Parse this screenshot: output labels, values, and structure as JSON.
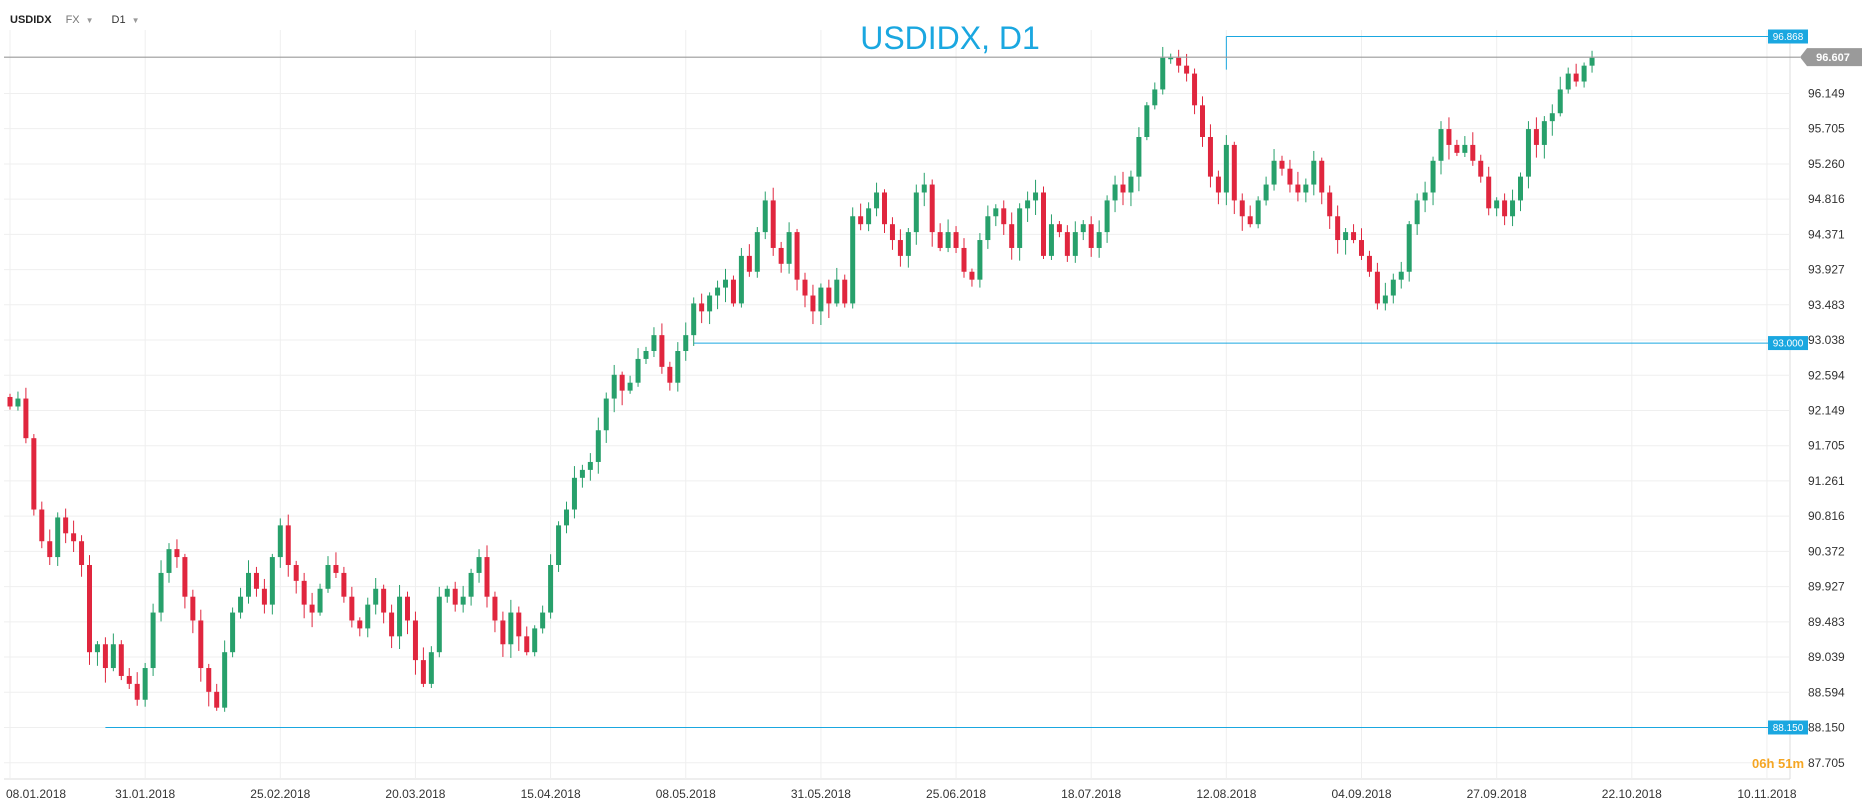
{
  "toolbar": {
    "symbol": "USDIDX",
    "market": "FX",
    "timeframe": "D1"
  },
  "timer": {
    "hours": "06",
    "h_unit": "h",
    "minutes": "51",
    "m_unit": "m"
  },
  "colors": {
    "up": "#27a06b",
    "down": "#e0263e",
    "level": "#1aa7e0",
    "current": "#9a9a9a",
    "grid": "#efefef",
    "title": "#1aa7e0",
    "timer": "#f5a623"
  },
  "chart_data": {
    "type": "candlestick",
    "title": "USDIDX, D1",
    "ylim": [
      87.5,
      96.95
    ],
    "yticks": [
      "96.149",
      "95.705",
      "95.260",
      "94.816",
      "94.371",
      "93.927",
      "93.483",
      "93.038",
      "92.594",
      "92.149",
      "91.705",
      "91.261",
      "90.816",
      "90.372",
      "89.927",
      "89.483",
      "89.039",
      "88.594",
      "88.150",
      "87.705"
    ],
    "xticks": [
      {
        "label": "08.01.2018",
        "index": 0
      },
      {
        "label": "31.01.2018",
        "index": 17
      },
      {
        "label": "25.02.2018",
        "index": 34
      },
      {
        "label": "20.03.2018",
        "index": 51
      },
      {
        "label": "15.04.2018",
        "index": 68
      },
      {
        "label": "08.05.2018",
        "index": 85
      },
      {
        "label": "31.05.2018",
        "index": 102
      },
      {
        "label": "25.06.2018",
        "index": 119
      },
      {
        "label": "18.07.2018",
        "index": 136
      },
      {
        "label": "12.08.2018",
        "index": 153
      },
      {
        "label": "04.09.2018",
        "index": 170
      },
      {
        "label": "27.09.2018",
        "index": 187
      },
      {
        "label": "22.10.2018",
        "index": 204
      },
      {
        "label": "10.11.2018",
        "index": 221
      }
    ],
    "levels": [
      {
        "label": "96.868",
        "value": 96.868,
        "from_index": 153
      },
      {
        "label": "93.000",
        "value": 93.0,
        "from_index": 86
      },
      {
        "label": "88.150",
        "value": 88.15,
        "from_index": 12
      }
    ],
    "current_price": {
      "label": "96.607",
      "value": 96.607
    },
    "closes": [
      92.2,
      92.3,
      91.8,
      90.9,
      90.5,
      90.3,
      90.8,
      90.6,
      90.5,
      90.2,
      89.1,
      89.2,
      88.9,
      89.2,
      88.8,
      88.7,
      88.5,
      88.9,
      89.6,
      90.1,
      90.4,
      90.3,
      89.8,
      89.5,
      88.9,
      88.6,
      88.4,
      89.1,
      89.6,
      89.8,
      90.1,
      89.9,
      89.7,
      90.3,
      90.7,
      90.2,
      90.0,
      89.7,
      89.6,
      89.9,
      90.2,
      90.1,
      89.8,
      89.5,
      89.4,
      89.7,
      89.9,
      89.6,
      89.3,
      89.8,
      89.5,
      89.0,
      88.7,
      89.1,
      89.8,
      89.9,
      89.7,
      89.8,
      90.1,
      90.3,
      89.8,
      89.5,
      89.2,
      89.6,
      89.3,
      89.1,
      89.4,
      89.6,
      90.2,
      90.7,
      90.9,
      91.3,
      91.4,
      91.5,
      91.9,
      92.3,
      92.6,
      92.4,
      92.5,
      92.8,
      92.9,
      93.1,
      92.7,
      92.5,
      92.9,
      93.1,
      93.5,
      93.4,
      93.6,
      93.7,
      93.8,
      93.5,
      94.1,
      93.9,
      94.4,
      94.8,
      94.2,
      94.0,
      94.4,
      93.8,
      93.6,
      93.4,
      93.7,
      93.5,
      93.8,
      93.5,
      94.6,
      94.5,
      94.7,
      94.9,
      94.5,
      94.3,
      94.1,
      94.4,
      94.9,
      95.0,
      94.4,
      94.2,
      94.4,
      94.2,
      93.9,
      93.8,
      94.3,
      94.6,
      94.7,
      94.5,
      94.2,
      94.7,
      94.8,
      94.9,
      94.1,
      94.5,
      94.4,
      94.1,
      94.4,
      94.5,
      94.2,
      94.4,
      94.8,
      95.0,
      94.9,
      95.1,
      95.6,
      96.0,
      96.2,
      96.6,
      96.6,
      96.5,
      96.4,
      96.0,
      95.6,
      95.1,
      94.9,
      95.5,
      94.8,
      94.6,
      94.5,
      94.8,
      95.0,
      95.3,
      95.2,
      95.0,
      94.9,
      95.0,
      95.3,
      94.9,
      94.6,
      94.3,
      94.4,
      94.3,
      94.1,
      93.9,
      93.5,
      93.6,
      93.8,
      93.9,
      94.5,
      94.8,
      94.9,
      95.3,
      95.7,
      95.5,
      95.4,
      95.5,
      95.3,
      95.1,
      94.7,
      94.8,
      94.6,
      94.8,
      95.1,
      95.7,
      95.5,
      95.8,
      95.9,
      96.2,
      96.4,
      96.3,
      96.5,
      96.6
    ]
  }
}
